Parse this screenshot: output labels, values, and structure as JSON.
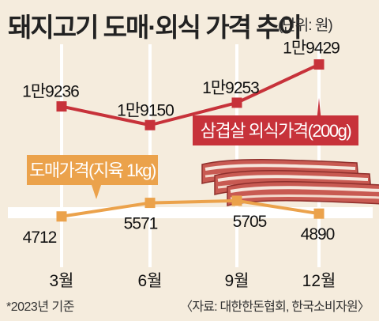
{
  "header": {
    "title": "돼지고기 도매·외식 가격 추이",
    "unit": "(단위: 원)"
  },
  "footer": {
    "note": "*2023년 기준",
    "source": "〈자료: 대한한돈협회, 한국소비자원〉"
  },
  "colors": {
    "retail": "#c7323a",
    "wholesale": "#eba24b",
    "grid": "#ffffff",
    "background": "#f5ecdd"
  },
  "chart_data": {
    "type": "line",
    "x": [
      "3월",
      "6월",
      "9월",
      "12월"
    ],
    "grid": true,
    "series": [
      {
        "name": "삼겹살 외식가격(200g)",
        "values": [
          19236,
          19150,
          19253,
          19429
        ],
        "labels": [
          "1만9236",
          "1만9150",
          "1만9253",
          "1만9429"
        ],
        "color": "#c7323a"
      },
      {
        "name": "도매가격(지육 1kg)",
        "values": [
          4712,
          5571,
          5705,
          4890
        ],
        "labels": [
          "4712",
          "5571",
          "5705",
          "4890"
        ],
        "color": "#eba24b"
      }
    ]
  }
}
